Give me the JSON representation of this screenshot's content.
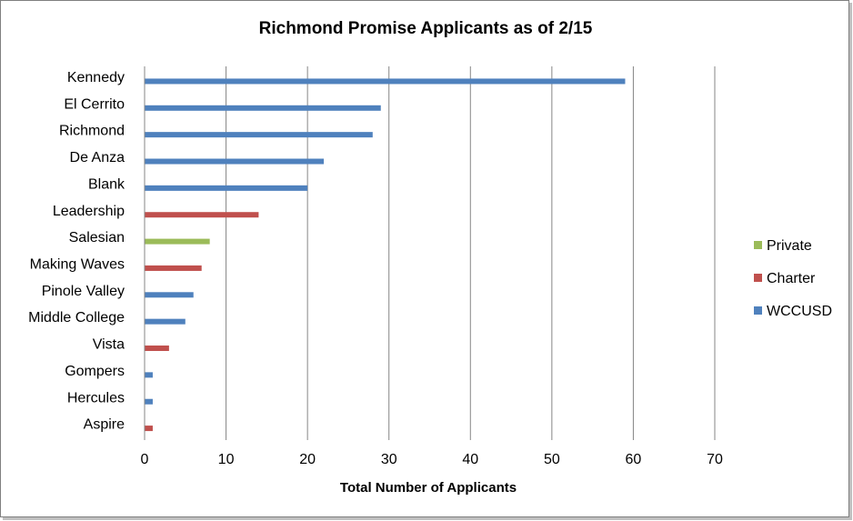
{
  "chart_data": {
    "type": "bar",
    "orientation": "horizontal",
    "title": "Richmond Promise Applicants  as of 2/15",
    "xlabel": "Total Number of Applicants",
    "ylabel": "",
    "xlim": [
      0,
      70
    ],
    "xticks": [
      0,
      10,
      20,
      30,
      40,
      50,
      60,
      70
    ],
    "grid": "vertical",
    "legend_position": "right",
    "categories": [
      "Kennedy",
      "El Cerrito",
      "Richmond",
      "De Anza",
      "Blank",
      "Leadership",
      "Salesian",
      "Making Waves",
      "Pinole Valley",
      "Middle College",
      "Vista",
      "Gompers",
      "Hercules",
      "Aspire"
    ],
    "series": [
      {
        "name": "Private",
        "color": "#9bbb59",
        "values": [
          null,
          null,
          null,
          null,
          null,
          null,
          8,
          null,
          null,
          null,
          null,
          null,
          null,
          null
        ]
      },
      {
        "name": "Charter",
        "color": "#c0504d",
        "values": [
          null,
          null,
          null,
          null,
          null,
          14,
          null,
          7,
          null,
          null,
          3,
          null,
          null,
          1
        ]
      },
      {
        "name": "WCCUSD",
        "color": "#4f81bd",
        "values": [
          59,
          29,
          28,
          22,
          20,
          null,
          null,
          null,
          6,
          5,
          null,
          1,
          1,
          null
        ]
      }
    ]
  }
}
